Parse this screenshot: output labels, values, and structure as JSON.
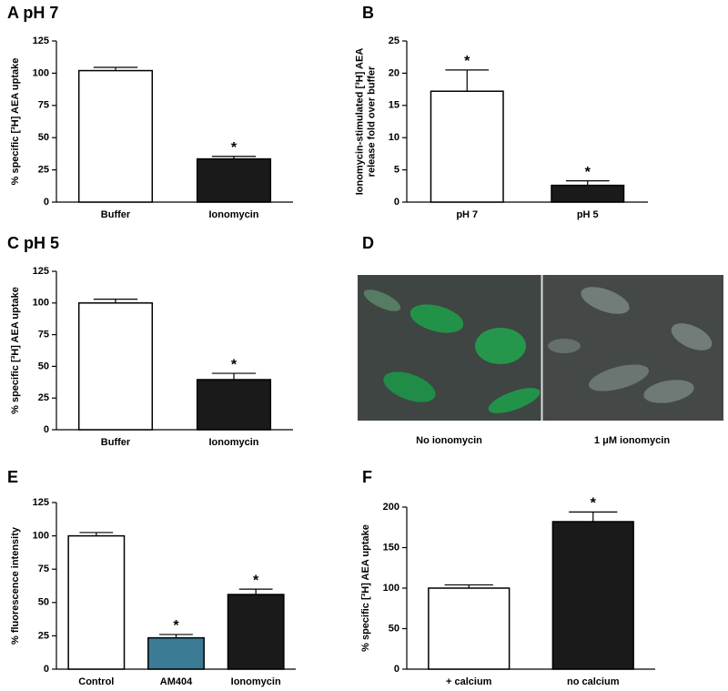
{
  "chart_data": [
    {
      "type": "bar",
      "title": "A pH 7",
      "y_label": [
        "% specific [³H] AEA uptake"
      ],
      "categories": [
        "Buffer",
        "Ionomycin"
      ],
      "values": [
        102,
        33.5
      ],
      "errors": [
        2.5,
        2
      ],
      "colors": [
        "#ffffff",
        "#1a1a1a"
      ],
      "annotations": [
        null,
        "*"
      ],
      "ylim": [
        0,
        125
      ],
      "yticks": [
        0,
        25,
        50,
        75,
        100,
        125
      ]
    },
    {
      "type": "bar",
      "title": "B",
      "y_label": [
        "Ionomycin-stimulated [³H] AEA",
        "release fold over buffer"
      ],
      "categories": [
        "pH 7",
        "pH 5"
      ],
      "values": [
        17.2,
        2.6
      ],
      "errors": [
        3.3,
        0.7
      ],
      "colors": [
        "#ffffff",
        "#1a1a1a"
      ],
      "annotations": [
        "*",
        "*"
      ],
      "ylim": [
        0,
        25
      ],
      "yticks": [
        0,
        5,
        10,
        15,
        20,
        25
      ]
    },
    {
      "type": "bar",
      "title": "C pH 5",
      "y_label": [
        "% specific [³H] AEA uptake"
      ],
      "categories": [
        "Buffer",
        "Ionomycin"
      ],
      "values": [
        100,
        39.5
      ],
      "errors": [
        3,
        5
      ],
      "colors": [
        "#ffffff",
        "#1a1a1a"
      ],
      "annotations": [
        null,
        "*"
      ],
      "ylim": [
        0,
        125
      ],
      "yticks": [
        0,
        25,
        50,
        75,
        100,
        125
      ]
    },
    {
      "type": "image",
      "title": "D",
      "panels": [
        "No ionomycin",
        "1 μM ionomycin"
      ]
    },
    {
      "type": "bar",
      "title": "E",
      "y_label": [
        "% fluorescence intensity"
      ],
      "categories": [
        "Control",
        "AM404",
        "Ionomycin"
      ],
      "values": [
        100,
        23.5,
        56
      ],
      "errors": [
        2.5,
        2.5,
        4
      ],
      "colors": [
        "#ffffff",
        "#3b7b95",
        "#1a1a1a"
      ],
      "annotations": [
        null,
        "*",
        "*"
      ],
      "ylim": [
        0,
        125
      ],
      "yticks": [
        0,
        25,
        50,
        75,
        100,
        125
      ]
    },
    {
      "type": "bar",
      "title": "F",
      "y_label": [
        "% specific [³H] AEA uptake"
      ],
      "categories": [
        "+ calcium",
        "no calcium"
      ],
      "values": [
        100,
        182
      ],
      "errors": [
        4,
        12
      ],
      "colors": [
        "#ffffff",
        "#1a1a1a"
      ],
      "annotations": [
        null,
        "*"
      ],
      "ylim": [
        0,
        200
      ],
      "yticks": [
        0,
        50,
        100,
        150,
        200
      ]
    }
  ]
}
